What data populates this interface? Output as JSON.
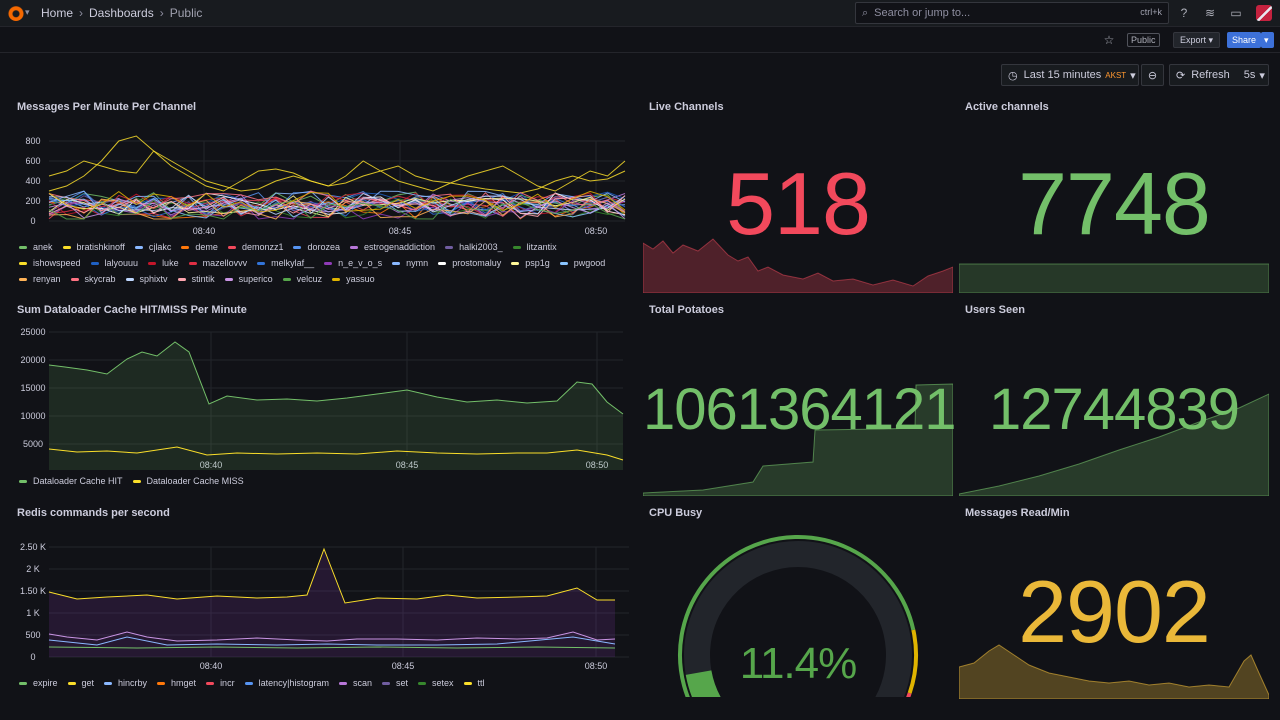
{
  "topbar": {
    "breadcrumbs": [
      "Home",
      "Dashboards",
      "Public"
    ],
    "search_placeholder": "Search or jump to...",
    "search_shortcut": "ctrl+k"
  },
  "subbar": {
    "public_tag": "Public",
    "export_label": "Export",
    "share_label": "Share"
  },
  "timepicker": {
    "range": "Last 15 minutes",
    "tz": "AKST",
    "refresh_label": "Refresh",
    "interval": "5s"
  },
  "colors": {
    "green": "#73bf69",
    "red": "#f2495c",
    "yellow": "#fade2a",
    "orange": "#ff9830",
    "blue": "#5794f2",
    "purple": "#b877d9",
    "gold": "#eab839"
  },
  "panels": {
    "messages": {
      "title": "Messages Per Minute Per Channel",
      "chart_data": {
        "type": "line",
        "x_ticks": [
          "08:40",
          "08:45",
          "08:50"
        ],
        "y_ticks": [
          "800",
          "600",
          "400",
          "200",
          "0"
        ],
        "series_names": [
          "anek",
          "bratishkinoff",
          "cjlakc",
          "deme",
          "demonzz1",
          "dorozea",
          "estrogenaddiction",
          "halki2003_",
          "litzantix",
          "ishowspeed",
          "lalyouuu",
          "luke",
          "mazellovvv",
          "melkylaf__",
          "n_e_v_o_s",
          "nymn",
          "prostomaluy",
          "psp1g",
          "pwgood",
          "renyan",
          "skycrab",
          "sphixtv",
          "stintik",
          "superico",
          "velcuz",
          "yassuo"
        ]
      },
      "legend_colors": [
        "#73bf69",
        "#fade2a",
        "#8ab8ff",
        "#ff780a",
        "#f2495c",
        "#5794f2",
        "#b877d9",
        "#705da0",
        "#37872d",
        "#fade2a",
        "#1f60c4",
        "#c4162a",
        "#e02f44",
        "#3274d9",
        "#8f3bb8",
        "#8ab8ff",
        "#ffffff",
        "#fff899",
        "#8ac4ff",
        "#ffb357",
        "#ff7383",
        "#c0d8ff",
        "#ffa6b0",
        "#ca95e5",
        "#56a64b",
        "#e0b400"
      ]
    },
    "live": {
      "title": "Live Channels",
      "value": "518"
    },
    "active": {
      "title": "Active channels",
      "value": "7748"
    },
    "cache": {
      "title": "Sum Dataloader Cache HIT/MISS Per Minute",
      "chart_data": {
        "type": "line",
        "x_ticks": [
          "08:40",
          "08:45",
          "08:50"
        ],
        "y_ticks": [
          "25000",
          "20000",
          "15000",
          "10000",
          "5000"
        ],
        "series_names": [
          "Dataloader Cache HIT",
          "Dataloader Cache MISS"
        ]
      }
    },
    "potatoes": {
      "title": "Total Potatoes",
      "value": "1061364121"
    },
    "users": {
      "title": "Users Seen",
      "value": "12744839"
    },
    "redis": {
      "title": "Redis commands per second",
      "chart_data": {
        "type": "line",
        "x_ticks": [
          "08:40",
          "08:45",
          "08:50"
        ],
        "y_ticks": [
          "2.50 K",
          "2 K",
          "1.50 K",
          "1 K",
          "500",
          "0"
        ],
        "series_names": [
          "expire",
          "get",
          "hincrby",
          "hmget",
          "incr",
          "latency|histogram",
          "scan",
          "set",
          "setex",
          "ttl"
        ]
      },
      "legend_colors": [
        "#73bf69",
        "#fade2a",
        "#8ab8ff",
        "#ff780a",
        "#f2495c",
        "#5794f2",
        "#b877d9",
        "#705da0",
        "#37872d",
        "#fade2a"
      ]
    },
    "cpu": {
      "title": "CPU Busy",
      "value": "11.4%",
      "fraction": 0.114
    },
    "msgread": {
      "title": "Messages Read/Min",
      "value": "2902"
    }
  }
}
